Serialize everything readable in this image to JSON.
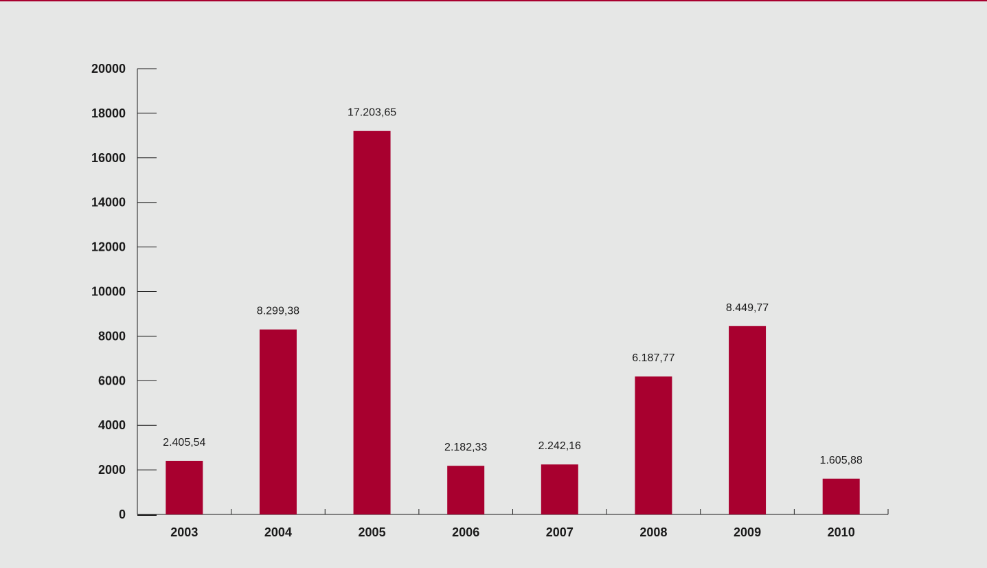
{
  "chart_data": {
    "type": "bar",
    "categories": [
      "2003",
      "2004",
      "2005",
      "2006",
      "2007",
      "2008",
      "2009",
      "2010"
    ],
    "values": [
      2405.54,
      8299.38,
      17203.65,
      2182.33,
      2242.16,
      6187.77,
      8449.77,
      1605.88
    ],
    "data_labels": [
      "2.405,54",
      "8.299,38",
      "17.203,65",
      "2.182,33",
      "2.242,16",
      "6.187,77",
      "8.449,77",
      "1.605,88"
    ],
    "yticks": [
      0,
      2000,
      4000,
      6000,
      8000,
      10000,
      12000,
      14000,
      16000,
      18000,
      20000
    ],
    "ylim": [
      0,
      20000
    ],
    "grid": false,
    "bar_color": "#a8002f",
    "background": "#e6e7e6"
  }
}
